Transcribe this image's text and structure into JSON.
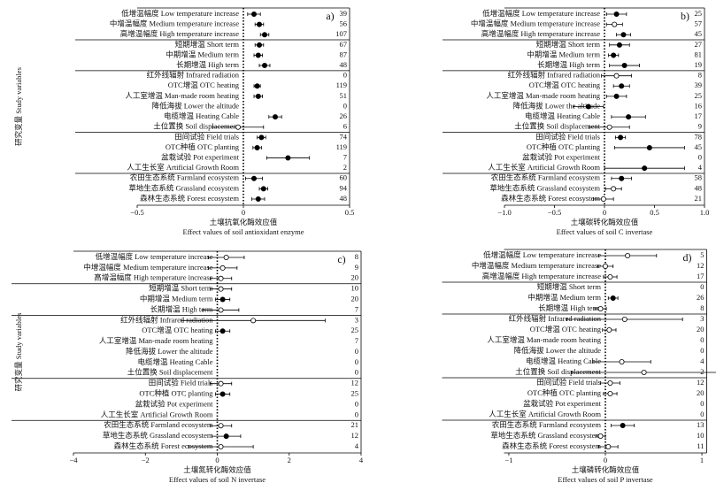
{
  "chart_data": [
    {
      "type": "forest",
      "panel_label": "a)",
      "ylabel": "研究变量 Study variables",
      "xlabel": "土壤抗氧化酶效应值",
      "xlabel_en": "Effect values of soil antioxidant enzyme",
      "categories": [
        "低增温幅度 Low temperature increase",
        "中增温幅度 Medium temperature increase",
        "高增温幅度 High temperature increase",
        "短期增温 Short term",
        "中期增温 Medium term",
        "长期增温 High term",
        "红外线辐射 Infrared radiation",
        "OTC增温 OTC heating",
        "人工室增温 Man-made room heating",
        "降低海拔 Lower the altitude",
        "电缆增温 Heating Cable",
        "土位置换 Soil displacement",
        "田间试验 Field trials",
        "OTC种植 OTC planting",
        "盆栽试验 Pot experiment",
        "人工生长室 Artificial Growth Room",
        "农田生态系统 Farmland ecosystem",
        "草地生态系统 Grassland ecosystem",
        "森林生态系统 Forest ecosystem"
      ],
      "values": [
        0.05,
        0.075,
        0.1,
        0.075,
        0.07,
        0.1,
        null,
        0.065,
        0.07,
        null,
        0.15,
        -0.025,
        0.085,
        0.065,
        0.21,
        null,
        0.05,
        0.095,
        0.07
      ],
      "errors": [
        0.03,
        0.02,
        0.02,
        0.02,
        0.02,
        0.025,
        null,
        0.015,
        0.02,
        null,
        0.03,
        0.12,
        0.02,
        0.02,
        0.1,
        null,
        0.04,
        0.02,
        0.03
      ],
      "filled": [
        true,
        true,
        true,
        true,
        true,
        true,
        null,
        true,
        true,
        null,
        true,
        false,
        true,
        true,
        true,
        null,
        true,
        true,
        true
      ],
      "counts": [
        39,
        56,
        107,
        67,
        87,
        48,
        0,
        119,
        51,
        0,
        26,
        6,
        74,
        119,
        7,
        2,
        60,
        94,
        48
      ],
      "xlim": [
        -0.5,
        0.5
      ],
      "xticks": [
        {
          "value": -0.5,
          "label": "−0.5"
        },
        0,
        0.5
      ],
      "color": "#000000"
    },
    {
      "type": "forest",
      "panel_label": "b)",
      "xlabel": "土壤碳转化酶效应值",
      "xlabel_en": "Effect values of soil C invertase",
      "categories": [
        "低增温幅度 Low temperature increase",
        "中增温幅度 Medium temperature increase",
        "高增温幅度 High temperature increase",
        "短期增温 Short term",
        "中期增温 Medium term",
        "长期增温 High term",
        "红外线辐射 Infrared radiation",
        "OTC增温 OTC heating",
        "人工室增温 Man-made room heating",
        "降低海拔 Lower the altitude",
        "电缆增温 Heating Cable",
        "土位置换 Soil displacement",
        "田间试验 Field trials",
        "OTC种植 OTC planting",
        "盆栽试验 Pot experiment",
        "人工生长室 Artificial Growth Room",
        "农田生态系统 Farmland ecosystem",
        "草地生态系统 Grassland ecosystem",
        "森林生态系统 Forest ecosystem"
      ],
      "values": [
        0.12,
        0.1,
        0.19,
        0.15,
        0.09,
        0.2,
        0.12,
        0.17,
        0.12,
        -0.16,
        0.24,
        0.05,
        0.16,
        0.45,
        null,
        0.4,
        0.17,
        0.09,
        -0.01
      ],
      "errors": [
        0.1,
        0.08,
        0.07,
        0.1,
        0.05,
        0.15,
        0.15,
        0.08,
        0.1,
        0.15,
        0.17,
        0.2,
        0.05,
        0.35,
        null,
        0.4,
        0.1,
        0.08,
        0.1
      ],
      "filled": [
        true,
        false,
        true,
        true,
        true,
        true,
        false,
        true,
        true,
        true,
        true,
        false,
        true,
        true,
        null,
        true,
        true,
        false,
        false
      ],
      "counts": [
        25,
        57,
        45,
        27,
        81,
        19,
        8,
        39,
        25,
        16,
        17,
        9,
        78,
        45,
        0,
        4,
        58,
        48,
        21
      ],
      "xlim": [
        -1,
        1
      ],
      "xticks": [
        {
          "value": -1,
          "label": "−1.0"
        },
        {
          "value": -0.5,
          "label": "−0.5"
        },
        0,
        0.5,
        {
          "value": 1,
          "label": "1.0"
        }
      ],
      "color": "#000000"
    },
    {
      "type": "forest",
      "panel_label": "c)",
      "ylabel": "研究变量 Study variables",
      "xlabel": "土壤氮转化酶效应值",
      "xlabel_en": "Effect values of soil N invertase",
      "categories": [
        "低增温幅度 Low temperature increase",
        "中增温幅度 Medium temperature increase",
        "高增温幅度 High temperature increase",
        "短期增温 Short term",
        "中期增温 Medium term",
        "长期增温 High term",
        "红外线辐射 Infrared radiation",
        "OTC增温 OTC heating",
        "人工室增温 Man-made room heating",
        "降低海拔 Lower the altitude",
        "电缆增温 Heating Cable",
        "土位置换 Soil displacement",
        "田间试验 Field trials",
        "OTC种植 OTC planting",
        "盆栽试验 Pot experiment",
        "人工生长室 Artificial Growth Room",
        "农田生态系统 Farmland ecosystem",
        "草地生态系统 Grassland ecosystem",
        "森林生态系统 Forest ecosystem"
      ],
      "values": [
        0.25,
        0.15,
        0.1,
        0.1,
        0.15,
        0.1,
        1.0,
        0.15,
        null,
        null,
        null,
        null,
        0.1,
        0.15,
        null,
        null,
        0.1,
        0.25,
        0.1
      ],
      "errors": [
        0.5,
        0.4,
        0.3,
        0.3,
        0.2,
        0.5,
        2.0,
        0.2,
        null,
        null,
        null,
        null,
        0.3,
        0.2,
        null,
        null,
        0.3,
        0.4,
        0.9
      ],
      "filled": [
        false,
        false,
        false,
        false,
        true,
        false,
        false,
        true,
        null,
        null,
        null,
        null,
        false,
        true,
        null,
        null,
        false,
        true,
        false
      ],
      "counts": [
        8,
        9,
        20,
        10,
        20,
        7,
        3,
        25,
        7,
        0,
        0,
        0,
        12,
        25,
        0,
        0,
        21,
        12,
        4
      ],
      "xlim": [
        -4,
        4
      ],
      "xticks": [
        {
          "value": -4,
          "label": "−4"
        },
        {
          "value": -2,
          "label": "−2"
        },
        0,
        2,
        4
      ],
      "color": "#000000"
    },
    {
      "type": "forest",
      "panel_label": "d)",
      "xlabel": "土壤磷转化酶效应值",
      "xlabel_en": "Effect values of soil P invertase",
      "categories": [
        "低增温幅度 Low temperature increase",
        "中增温幅度 Medium temperature increase",
        "高增温幅度 High temperature increase",
        "短期增温 Short term",
        "中期增温 Medium term",
        "长期增温 High term",
        "红外线辐射 Infrared radiation",
        "OTC增温 OTC heating",
        "人工室增温 Man-made room heating",
        "降低海拔 Lower the altitude",
        "电缆增温 Heating Cable",
        "土位置换 Soil displacement",
        "田间试验 Field trials",
        "OTC种植 OTC planting",
        "盆栽试验 Pot experiment",
        "人工生长室 Artificial Growth Room",
        "农田生态系统 Farmland ecosystem",
        "草地生态系统 Grassland ecosystem",
        "森林生态系统 Forest ecosystem"
      ],
      "values": [
        0.23,
        0.0,
        0.05,
        null,
        0.08,
        -0.05,
        0.2,
        0.04,
        null,
        null,
        0.17,
        0.4,
        0.05,
        0.05,
        null,
        null,
        0.18,
        -0.05,
        0.03
      ],
      "errors": [
        0.3,
        0.08,
        0.07,
        null,
        0.05,
        0.06,
        0.6,
        0.07,
        null,
        null,
        0.3,
        0.75,
        0.1,
        0.07,
        null,
        null,
        0.12,
        0.05,
        0.1
      ],
      "filled": [
        false,
        false,
        false,
        null,
        true,
        false,
        false,
        false,
        null,
        null,
        false,
        false,
        false,
        false,
        null,
        null,
        true,
        false,
        false
      ],
      "counts": [
        5,
        12,
        17,
        0,
        26,
        8,
        3,
        20,
        0,
        0,
        4,
        2,
        12,
        20,
        0,
        0,
        13,
        10,
        11
      ],
      "xlim": [
        -1.05,
        1.05
      ],
      "xticks": [
        {
          "value": -1,
          "label": "−1"
        },
        0,
        1
      ],
      "color": "#000000"
    }
  ]
}
